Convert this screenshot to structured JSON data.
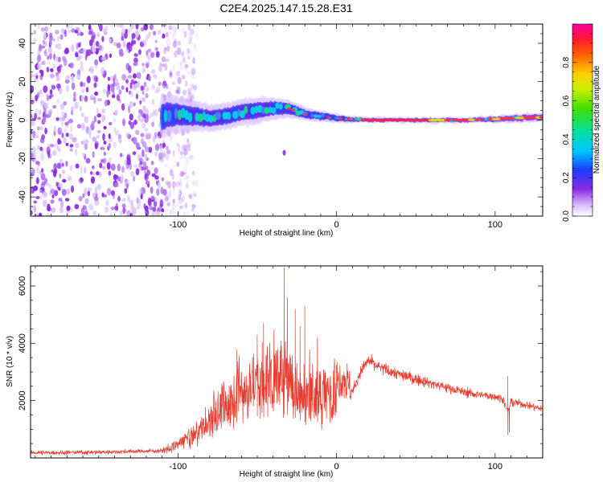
{
  "title": "C2E4.2025.147.15.28.E31",
  "colors": {
    "snr_line": "#e83a2e",
    "cloud": "#8a2be2",
    "ridge_core": "#ff2050",
    "ridge_mid": "#00e0c0",
    "axes": "#000000"
  },
  "chart_data": [
    {
      "type": "heatmap",
      "title": "C2E4.2025.147.15.28.E31",
      "xlabel": "Height of straight line (km)",
      "ylabel": "Frequency (Hz)",
      "xlim": [
        -193,
        130
      ],
      "ylim": [
        -50,
        50
      ],
      "x_ticks": [
        -100,
        0,
        100
      ],
      "y_ticks": [
        -40,
        -20,
        0,
        20,
        40
      ],
      "x_tick_labels": [
        "-100",
        "0",
        "100"
      ],
      "y_tick_labels": [
        "-40",
        "-20",
        "0",
        "20",
        "40"
      ],
      "noise_region": [
        -193,
        -100
      ],
      "ridge": {
        "x": [
          -110,
          -100,
          -90,
          -80,
          -70,
          -60,
          -50,
          -40,
          -30,
          -20,
          -10,
          0,
          10,
          20,
          40,
          60,
          80,
          100,
          110,
          130
        ],
        "freq": [
          2,
          3,
          2,
          1,
          2,
          4,
          5,
          6,
          6,
          3,
          2,
          1,
          0.5,
          0,
          0,
          0,
          0,
          0.5,
          1,
          1.5
        ],
        "width": [
          10,
          8,
          7,
          6,
          6,
          6,
          6,
          5,
          4,
          3,
          2.5,
          2,
          1.5,
          1.2,
          1.2,
          1.2,
          1.2,
          1.5,
          2,
          2
        ]
      },
      "colorbar": {
        "label": "Normalized spectral amplitude",
        "range": [
          0,
          1
        ],
        "ticks": [
          0.0,
          0.2,
          0.4,
          0.6,
          0.8
        ],
        "tick_labels": [
          "0.0",
          "0.2",
          "0.4",
          "0.6",
          "0.8"
        ]
      }
    },
    {
      "type": "line",
      "xlabel": "Height of straight line (km)",
      "ylabel": "SNR (10 * v/v)",
      "xlim": [
        -193,
        130
      ],
      "ylim": [
        0,
        6700
      ],
      "x_ticks": [
        -100,
        0,
        100
      ],
      "y_ticks": [
        2000,
        4000,
        6000
      ],
      "x_tick_labels": [
        "-100",
        "0",
        "100"
      ],
      "y_tick_labels": [
        "2000",
        "4000",
        "6000"
      ],
      "series": [
        {
          "name": "SNR",
          "envelope_x": [
            -193,
            -150,
            -110,
            -100,
            -90,
            -80,
            -70,
            -60,
            -50,
            -40,
            -35,
            -30,
            -20,
            -10,
            0,
            5,
            10,
            15,
            20,
            25,
            30,
            40,
            50,
            60,
            70,
            80,
            90,
            100,
            105,
            108,
            110,
            120,
            130
          ],
          "envelope_y": [
            180,
            200,
            250,
            500,
            900,
            1400,
            2100,
            2600,
            2900,
            3000,
            3100,
            3000,
            2500,
            2500,
            2700,
            2800,
            2300,
            3000,
            3400,
            3200,
            3100,
            2900,
            2750,
            2600,
            2450,
            2300,
            2200,
            2150,
            2050,
            1600,
            1950,
            1850,
            1700
          ],
          "spikes": [
            {
              "x": -63,
              "y": 3800
            },
            {
              "x": -50,
              "y": 4300
            },
            {
              "x": -46,
              "y": 4700
            },
            {
              "x": -33,
              "y": 6650
            },
            {
              "x": -31,
              "y": 5600
            },
            {
              "x": -26,
              "y": 5200
            },
            {
              "x": -23,
              "y": 4600
            },
            {
              "x": -20,
              "y": 5300
            },
            {
              "x": -12,
              "y": 4200
            },
            {
              "x": 108,
              "y": 2850
            },
            {
              "x": 109,
              "y": 900
            }
          ]
        }
      ]
    }
  ]
}
